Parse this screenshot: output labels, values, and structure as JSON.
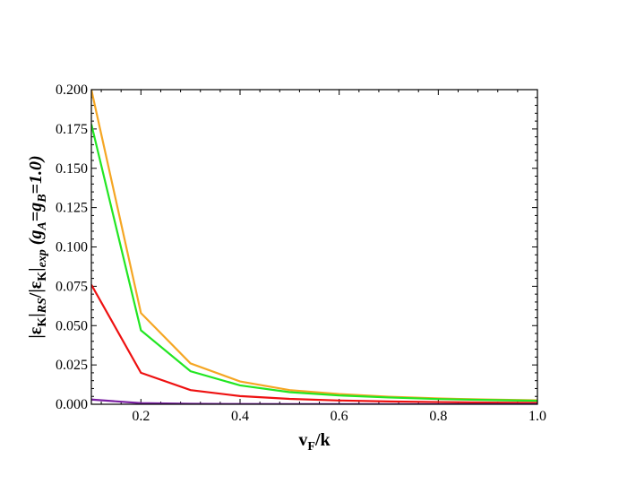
{
  "chart_data": {
    "type": "line",
    "title": "",
    "xlabel": {
      "base": "v",
      "sub": "F",
      "rest": "/k"
    },
    "ylabel": {
      "parts": [
        {
          "t": "|ε",
          "style": "normal"
        },
        {
          "t": "K",
          "style": "sub"
        },
        {
          "t": "|",
          "style": "normal"
        },
        {
          "t": "RS",
          "style": "sub-italic"
        },
        {
          "t": "/|ε",
          "style": "normal"
        },
        {
          "t": "K",
          "style": "sub"
        },
        {
          "t": "|",
          "style": "normal"
        },
        {
          "t": "exp",
          "style": "sub-italic"
        },
        {
          "t": " (g",
          "style": "italic"
        },
        {
          "t": "A",
          "style": "sub-italic"
        },
        {
          "t": "=g",
          "style": "italic"
        },
        {
          "t": "B",
          "style": "sub-italic"
        },
        {
          "t": "=1.0)",
          "style": "italic"
        }
      ]
    },
    "xlim": [
      0.1,
      1.0
    ],
    "ylim": [
      0.0,
      0.2
    ],
    "xticks": [
      "0.2",
      "0.4",
      "0.6",
      "0.8",
      "1.0"
    ],
    "xtick_values": [
      0.2,
      0.4,
      0.6,
      0.8,
      1.0
    ],
    "yticks": [
      "0.000",
      "0.025",
      "0.050",
      "0.075",
      "0.100",
      "0.125",
      "0.150",
      "0.175",
      "0.200"
    ],
    "ytick_values": [
      0.0,
      0.025,
      0.05,
      0.075,
      0.1,
      0.125,
      0.15,
      0.175,
      0.2
    ],
    "x": [
      0.1,
      0.2,
      0.3,
      0.4,
      0.5,
      0.6,
      0.7,
      0.8,
      0.9,
      1.0
    ],
    "series": [
      {
        "color": "#f5a623",
        "values": [
          0.2,
          0.058,
          0.026,
          0.0145,
          0.009,
          0.0065,
          0.0048,
          0.0037,
          0.003,
          0.0025
        ]
      },
      {
        "color": "#22e622",
        "values": [
          0.178,
          0.047,
          0.021,
          0.012,
          0.0077,
          0.0056,
          0.0043,
          0.0033,
          0.0027,
          0.0022
        ]
      },
      {
        "color": "#ee1111",
        "values": [
          0.076,
          0.02,
          0.009,
          0.0052,
          0.0034,
          0.0024,
          0.0018,
          0.0014,
          0.0011,
          0.0009
        ]
      },
      {
        "color": "#7a1fa2",
        "values": [
          0.003,
          0.0007,
          0.0003,
          0.00015,
          0.0001,
          6e-05,
          4e-05,
          3e-05,
          2e-05,
          1e-05
        ]
      }
    ],
    "grid": false,
    "legend": "none"
  }
}
